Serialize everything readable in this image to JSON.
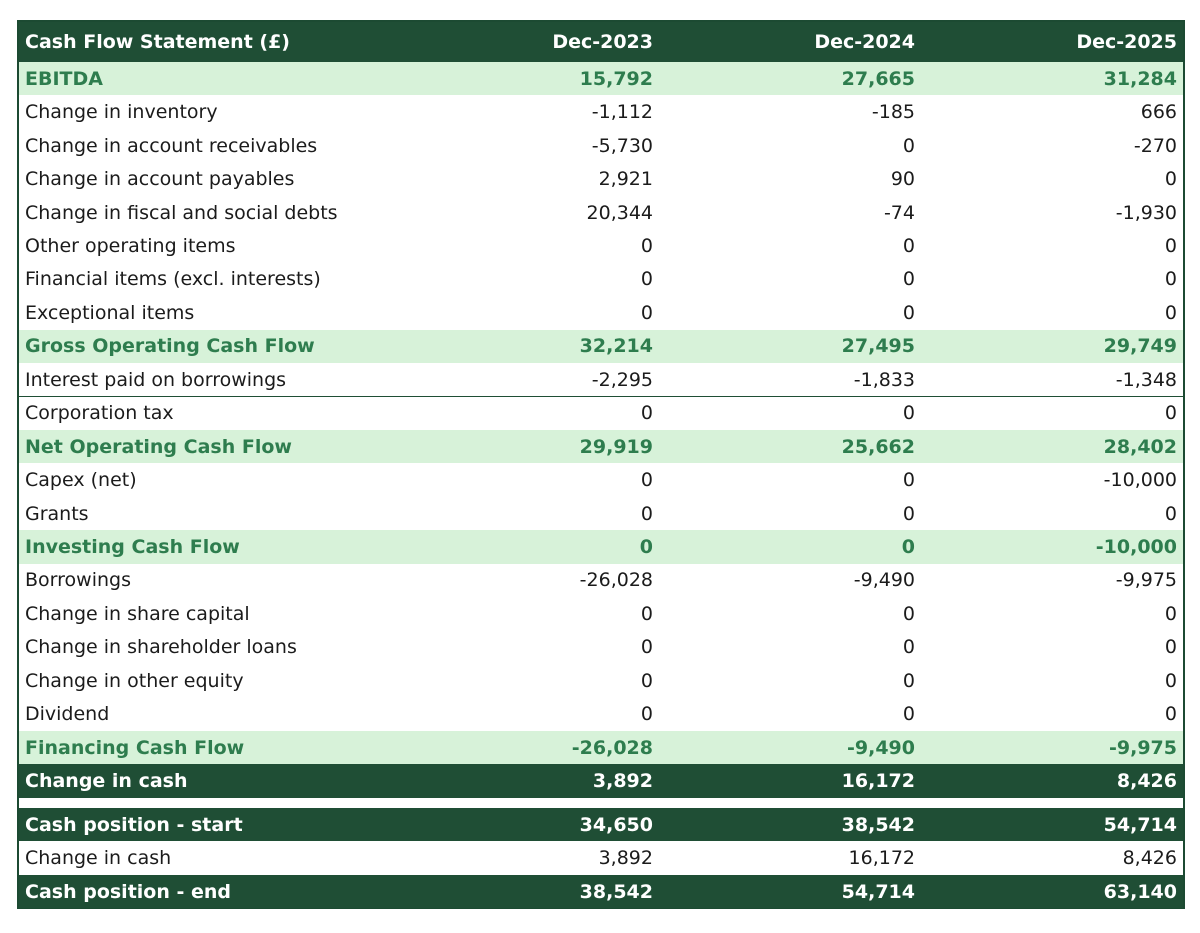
{
  "table": {
    "header": {
      "label": "Cash Flow Statement (£)",
      "c1": "Dec-2023",
      "c2": "Dec-2024",
      "c3": "Dec-2025"
    },
    "rows": [
      {
        "label": "EBITDA",
        "c1": "15,792",
        "c2": "27,665",
        "c3": "31,284",
        "style": "subtotal"
      },
      {
        "label": "Change in inventory",
        "c1": "-1,112",
        "c2": "-185",
        "c3": "666",
        "style": "normal"
      },
      {
        "label": "Change in account receivables",
        "c1": "-5,730",
        "c2": "0",
        "c3": "-270",
        "style": "normal"
      },
      {
        "label": "Change in account payables",
        "c1": "2,921",
        "c2": "90",
        "c3": "0",
        "style": "normal"
      },
      {
        "label": "Change in fiscal and social debts",
        "c1": "20,344",
        "c2": "-74",
        "c3": "-1,930",
        "style": "normal"
      },
      {
        "label": "Other operating items",
        "c1": "0",
        "c2": "0",
        "c3": "0",
        "style": "normal"
      },
      {
        "label": "Financial items (excl. interests)",
        "c1": "0",
        "c2": "0",
        "c3": "0",
        "style": "normal"
      },
      {
        "label": "Exceptional items",
        "c1": "0",
        "c2": "0",
        "c3": "0",
        "style": "normal"
      },
      {
        "label": "Gross Operating Cash Flow",
        "c1": "32,214",
        "c2": "27,495",
        "c3": "29,749",
        "style": "subtotal"
      },
      {
        "label": "Interest paid on borrowings",
        "c1": "-2,295",
        "c2": "-1,833",
        "c3": "-1,348",
        "style": "normal"
      },
      {
        "label": "Corporation tax",
        "c1": "0",
        "c2": "0",
        "c3": "0",
        "style": "normal"
      },
      {
        "label": "Net Operating Cash Flow",
        "c1": "29,919",
        "c2": "25,662",
        "c3": "28,402",
        "style": "subtotal"
      },
      {
        "label": "Capex (net)",
        "c1": "0",
        "c2": "0",
        "c3": "-10,000",
        "style": "normal"
      },
      {
        "label": "Grants",
        "c1": "0",
        "c2": "0",
        "c3": "0",
        "style": "normal"
      },
      {
        "label": "Investing Cash Flow",
        "c1": "0",
        "c2": "0",
        "c3": "-10,000",
        "style": "subtotal"
      },
      {
        "label": "Borrowings",
        "c1": "-26,028",
        "c2": "-9,490",
        "c3": "-9,975",
        "style": "normal"
      },
      {
        "label": "Change in share capital",
        "c1": "0",
        "c2": "0",
        "c3": "0",
        "style": "normal"
      },
      {
        "label": "Change in shareholder loans",
        "c1": "0",
        "c2": "0",
        "c3": "0",
        "style": "normal"
      },
      {
        "label": "Change in other equity",
        "c1": "0",
        "c2": "0",
        "c3": "0",
        "style": "normal"
      },
      {
        "label": "Dividend",
        "c1": "0",
        "c2": "0",
        "c3": "0",
        "style": "normal"
      },
      {
        "label": "Financing Cash Flow",
        "c1": "-26,028",
        "c2": "-9,490",
        "c3": "-9,975",
        "style": "subtotal"
      },
      {
        "label": "Change in cash",
        "c1": "3,892",
        "c2": "16,172",
        "c3": "8,426",
        "style": "total"
      }
    ],
    "position_rows": [
      {
        "label": "Cash position - start",
        "c1": "34,650",
        "c2": "38,542",
        "c3": "54,714",
        "style": "total"
      },
      {
        "label": "Change in cash",
        "c1": "3,892",
        "c2": "16,172",
        "c3": "8,426",
        "style": "normal"
      },
      {
        "label": "Cash position - end",
        "c1": "38,542",
        "c2": "54,714",
        "c3": "63,140",
        "style": "total"
      }
    ]
  },
  "colors": {
    "dark_green": "#1f4e35",
    "light_green": "#d7f2d9",
    "subtotal_text": "#2e7d4e"
  }
}
